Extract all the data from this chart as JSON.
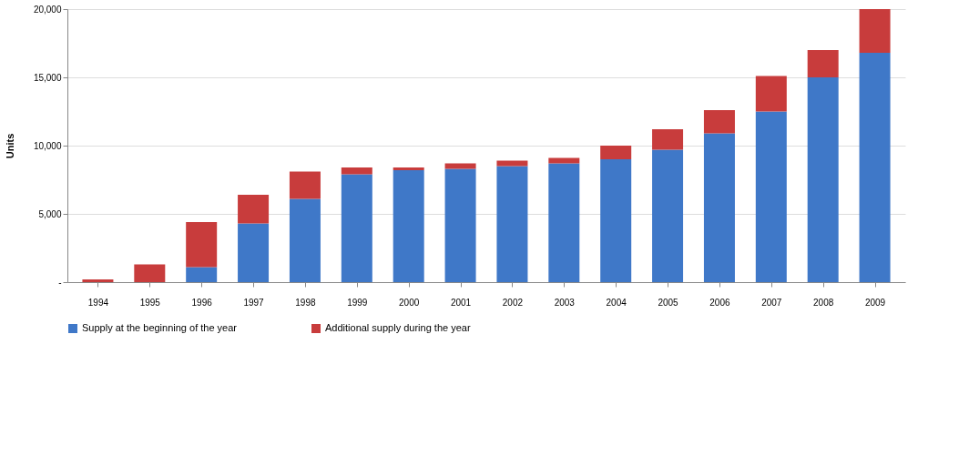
{
  "chart_data": {
    "type": "bar",
    "stacked": true,
    "ylabel": "Units",
    "categories": [
      "1994",
      "1995",
      "1996",
      "1997",
      "1998",
      "1999",
      "2000",
      "2001",
      "2002",
      "2003",
      "2004",
      "2005",
      "2006",
      "2007",
      "2008",
      "2009"
    ],
    "series": [
      {
        "name": "Supply at the beginning of the year",
        "color": "#3f78c8",
        "values": [
          0,
          0,
          1100,
          4300,
          6100,
          7900,
          8200,
          8300,
          8500,
          8700,
          9000,
          9700,
          10900,
          12500,
          15000,
          16800
        ]
      },
      {
        "name": "Additional supply during the year",
        "color": "#c83c3c",
        "values": [
          200,
          1300,
          3300,
          2100,
          2000,
          500,
          200,
          400,
          400,
          400,
          1000,
          1500,
          1700,
          2600,
          2000,
          3200
        ]
      }
    ],
    "ylim": [
      0,
      20000
    ],
    "yticks": [
      {
        "value": 0,
        "label": "-"
      },
      {
        "value": 5000,
        "label": "5,000"
      },
      {
        "value": 10000,
        "label": "10,000"
      },
      {
        "value": 15000,
        "label": "15,000"
      },
      {
        "value": 20000,
        "label": "20,000"
      }
    ],
    "grid": "y",
    "legend": "bottom"
  }
}
